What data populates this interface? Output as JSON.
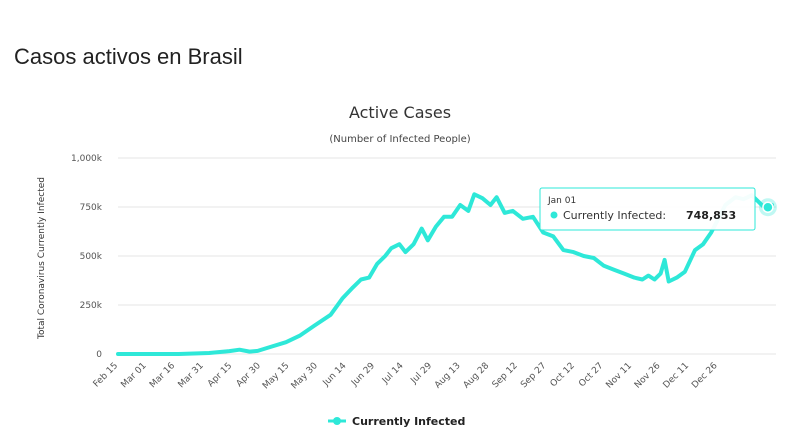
{
  "page": {
    "heading": "Casos activos en Brasil"
  },
  "colors": {
    "series": "#2ee8d8",
    "grid": "#e6e6e6",
    "tooltip_border": "#2ee8d8"
  },
  "chart_data": {
    "type": "area",
    "title": "Active Cases",
    "subtitle": "(Number of Infected People)",
    "ylabel": "Total Coronavirus Currently Infected",
    "xlabel": "",
    "ylim": [
      0,
      1000000
    ],
    "yticks": [
      {
        "value": 0,
        "label": "0"
      },
      {
        "value": 250000,
        "label": "250k"
      },
      {
        "value": 500000,
        "label": "500k"
      },
      {
        "value": 750000,
        "label": "750k"
      },
      {
        "value": 1000000,
        "label": "1,000k"
      }
    ],
    "x_range": [
      "2020-02-15",
      "2021-01-05"
    ],
    "xticks": [
      "Feb 15",
      "Mar 01",
      "Mar 16",
      "Mar 31",
      "Apr 15",
      "Apr 30",
      "May 15",
      "May 30",
      "Jun 14",
      "Jun 29",
      "Jul 14",
      "Jul 29",
      "Aug 13",
      "Aug 28",
      "Sep 12",
      "Sep 27",
      "Oct 12",
      "Oct 27",
      "Nov 11",
      "Nov 26",
      "Dec 11",
      "Dec 26"
    ],
    "grid": true,
    "legend_position": "bottom-center",
    "series": [
      {
        "name": "Currently Infected",
        "points": [
          [
            "2020-02-15",
            0
          ],
          [
            "2020-03-01",
            0
          ],
          [
            "2020-03-16",
            200
          ],
          [
            "2020-03-31",
            5000
          ],
          [
            "2020-04-10",
            15000
          ],
          [
            "2020-04-15",
            22000
          ],
          [
            "2020-04-20",
            12000
          ],
          [
            "2020-04-24",
            16000
          ],
          [
            "2020-04-30",
            35000
          ],
          [
            "2020-05-08",
            60000
          ],
          [
            "2020-05-15",
            95000
          ],
          [
            "2020-05-22",
            145000
          ],
          [
            "2020-05-30",
            200000
          ],
          [
            "2020-06-05",
            285000
          ],
          [
            "2020-06-10",
            340000
          ],
          [
            "2020-06-14",
            380000
          ],
          [
            "2020-06-18",
            390000
          ],
          [
            "2020-06-22",
            460000
          ],
          [
            "2020-06-26",
            500000
          ],
          [
            "2020-06-29",
            540000
          ],
          [
            "2020-07-03",
            560000
          ],
          [
            "2020-07-06",
            520000
          ],
          [
            "2020-07-10",
            560000
          ],
          [
            "2020-07-14",
            640000
          ],
          [
            "2020-07-17",
            580000
          ],
          [
            "2020-07-21",
            650000
          ],
          [
            "2020-07-25",
            700000
          ],
          [
            "2020-07-29",
            700000
          ],
          [
            "2020-08-02",
            760000
          ],
          [
            "2020-08-06",
            730000
          ],
          [
            "2020-08-09",
            815000
          ],
          [
            "2020-08-13",
            795000
          ],
          [
            "2020-08-17",
            760000
          ],
          [
            "2020-08-20",
            800000
          ],
          [
            "2020-08-24",
            720000
          ],
          [
            "2020-08-28",
            730000
          ],
          [
            "2020-09-02",
            690000
          ],
          [
            "2020-09-07",
            700000
          ],
          [
            "2020-09-12",
            620000
          ],
          [
            "2020-09-17",
            600000
          ],
          [
            "2020-09-22",
            530000
          ],
          [
            "2020-09-27",
            520000
          ],
          [
            "2020-10-02",
            500000
          ],
          [
            "2020-10-07",
            490000
          ],
          [
            "2020-10-12",
            450000
          ],
          [
            "2020-10-17",
            430000
          ],
          [
            "2020-10-22",
            410000
          ],
          [
            "2020-10-27",
            390000
          ],
          [
            "2020-10-31",
            380000
          ],
          [
            "2020-11-03",
            400000
          ],
          [
            "2020-11-06",
            380000
          ],
          [
            "2020-11-09",
            410000
          ],
          [
            "2020-11-11",
            480000
          ],
          [
            "2020-11-13",
            370000
          ],
          [
            "2020-11-17",
            390000
          ],
          [
            "2020-11-21",
            420000
          ],
          [
            "2020-11-26",
            530000
          ],
          [
            "2020-11-30",
            560000
          ],
          [
            "2020-12-04",
            620000
          ],
          [
            "2020-12-08",
            700000
          ],
          [
            "2020-12-11",
            760000
          ],
          [
            "2020-12-16",
            800000
          ],
          [
            "2020-12-20",
            790000
          ],
          [
            "2020-12-24",
            810000
          ],
          [
            "2020-12-27",
            780000
          ],
          [
            "2020-12-30",
            750000
          ],
          [
            "2021-01-01",
            748853
          ],
          [
            "2021-01-03",
            760000
          ]
        ]
      }
    ],
    "tooltip": {
      "date": "Jan 01",
      "series_name": "Currently Infected",
      "label": "Currently Infected:",
      "value": "748,853",
      "point_date": "2021-01-01",
      "point_value": 748853
    },
    "legend": [
      {
        "name": "Currently Infected"
      }
    ]
  }
}
